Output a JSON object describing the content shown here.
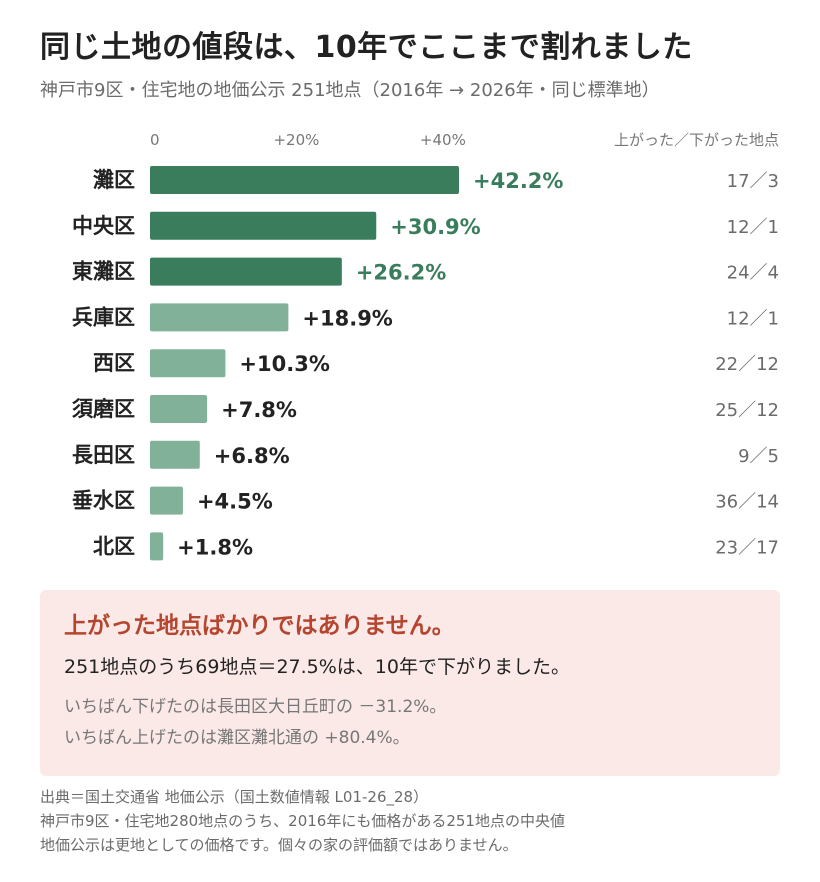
{
  "header": {
    "title": "同じ土地の値段は、10年でここまで割れました",
    "subtitle": "神戸市9区・住宅地の地価公示 251地点（2016年 → 2026年・同じ標準地）"
  },
  "colors": {
    "strong": "#3a7d5c",
    "light": "#82b199",
    "callout_bg": "#fbe9e7",
    "callout_head": "#b5452f"
  },
  "chart_data": {
    "type": "bar",
    "orientation": "horizontal",
    "ticks": [
      "0",
      "+20%",
      "+40%"
    ],
    "tick_values": [
      0,
      20,
      40
    ],
    "xlim": [
      0,
      42.2
    ],
    "count_header": "上がった／下がった地点",
    "categories": [
      "灘区",
      "中央区",
      "東灘区",
      "兵庫区",
      "西区",
      "須磨区",
      "長田区",
      "垂水区",
      "北区"
    ],
    "values": [
      42.2,
      30.9,
      26.2,
      18.9,
      10.3,
      7.8,
      6.8,
      4.5,
      1.8
    ],
    "value_labels": [
      "+42.2%",
      "+30.9%",
      "+26.2%",
      "+18.9%",
      "+10.3%",
      "+7.8%",
      "+6.8%",
      "+4.5%",
      "+1.8%"
    ],
    "counts": [
      "17／3",
      "12／1",
      "24／4",
      "12／1",
      "22／12",
      "25／12",
      "9／5",
      "36／14",
      "23／17"
    ],
    "highlight": [
      true,
      true,
      true,
      false,
      false,
      false,
      false,
      false,
      false
    ]
  },
  "callout": {
    "heading": "上がった地点ばかりではありません。",
    "main": "251地点のうち69地点＝27.5%は、10年で下がりました。",
    "sub1": "いちばん下げたのは長田区大日丘町の －31.2%。",
    "sub2": "いちばん上げたのは灘区灘北通の +80.4%。"
  },
  "footer": {
    "line1": "出典＝国土交通省 地価公示（国土数値情報 L01-26_28）",
    "line2": "神戸市9区・住宅地280地点のうち、2016年にも価格がある251地点の中央値",
    "line3": "地価公示は更地としての価格です。個々の家の評価額ではありません。"
  }
}
